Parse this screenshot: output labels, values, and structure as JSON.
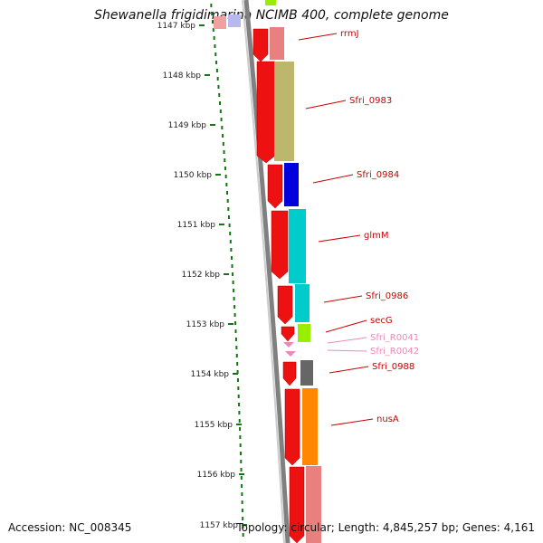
{
  "title": "Shewanella frigidimarina NCIMB 400, complete genome",
  "footer": {
    "accession": "Accession: NC_008345",
    "summary": "Topology: circular; Length: 4,845,257 bp; Genes: 4,161"
  },
  "axis_ticks": [
    "1147 kbp",
    "1148 kbp",
    "1149 kbp",
    "1150 kbp",
    "1151 kbp",
    "1152 kbp",
    "1153 kbp",
    "1154 kbp",
    "1155 kbp",
    "1156 kbp",
    "1157 kbp"
  ],
  "genes": [
    {
      "label": "rrmJ",
      "color": "#cc0000"
    },
    {
      "label": "Sfri_0983",
      "color": "#cc0000"
    },
    {
      "label": "Sfri_0984",
      "color": "#cc0000"
    },
    {
      "label": "glmM",
      "color": "#cc0000"
    },
    {
      "label": "Sfri_0986",
      "color": "#cc0000"
    },
    {
      "label": "secG",
      "color": "#cc0000"
    },
    {
      "label": "Sfri_R0041",
      "color": "#ee88bb"
    },
    {
      "label": "Sfri_R0042",
      "color": "#ee88bb"
    },
    {
      "label": "Sfri_0988",
      "color": "#cc0000"
    },
    {
      "label": "nusA",
      "color": "#cc0000"
    }
  ],
  "colors": {
    "cds_strand": "#ee1111",
    "rna_strand": "#ee88bb",
    "tick_dots": "#117711",
    "backbone": "#808080"
  }
}
